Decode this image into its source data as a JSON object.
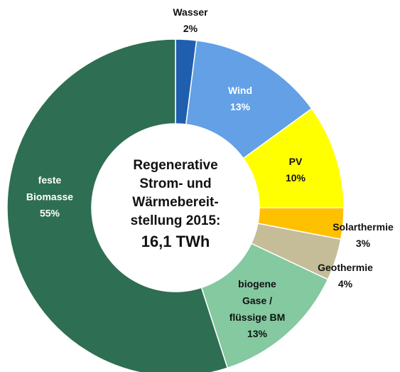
{
  "chart_data": {
    "type": "donut",
    "categories": [
      "Wasser",
      "Wind",
      "PV",
      "Solarthermie",
      "Geothermie",
      "biogene\nGase /\nflüssige BM",
      "feste\nBiomasse"
    ],
    "values": [
      2,
      13,
      10,
      3,
      4,
      13,
      55
    ],
    "value_labels": [
      "2%",
      "13%",
      "10%",
      "3%",
      "4%",
      "13%",
      "55%"
    ],
    "colors": [
      "#1f5fae",
      "#63a0e6",
      "#ffff00",
      "#ffc000",
      "#c4bd97",
      "#84c9a0",
      "#2e6e52"
    ],
    "center_lines": [
      "Regenerative",
      "Strom- und",
      "Wärmebereit-",
      "stellung 2015:",
      "16,1 TWh"
    ]
  }
}
